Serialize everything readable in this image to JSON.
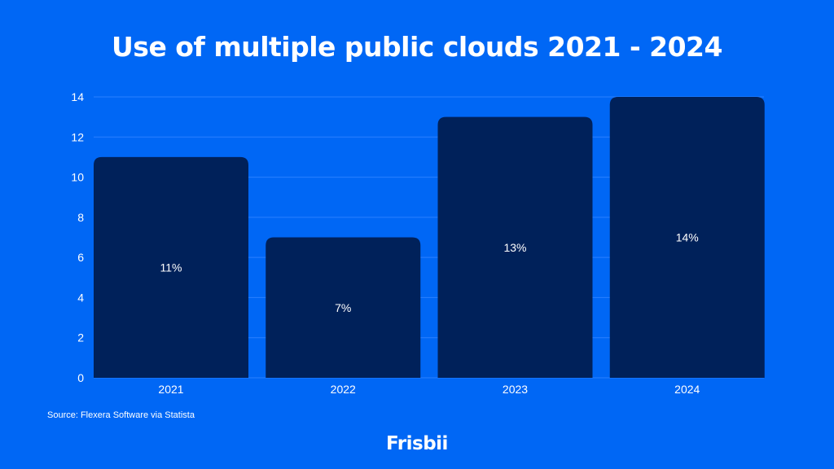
{
  "chart_data": {
    "type": "bar",
    "title": "Use of multiple public clouds 2021 - 2024",
    "categories": [
      "2021",
      "2022",
      "2023",
      "2024"
    ],
    "values": [
      11,
      7,
      13,
      14
    ],
    "data_labels": [
      "11%",
      "7%",
      "13%",
      "14%"
    ],
    "xlabel": "",
    "ylabel": "",
    "ylim": [
      0,
      14
    ],
    "yticks": [
      0,
      2,
      4,
      6,
      8,
      10,
      12,
      14
    ],
    "grid": true,
    "bar_color": "#00215a",
    "background_color": "#0067f5"
  },
  "source": "Source: Flexera Software via Statista",
  "logo": "Frisbii"
}
